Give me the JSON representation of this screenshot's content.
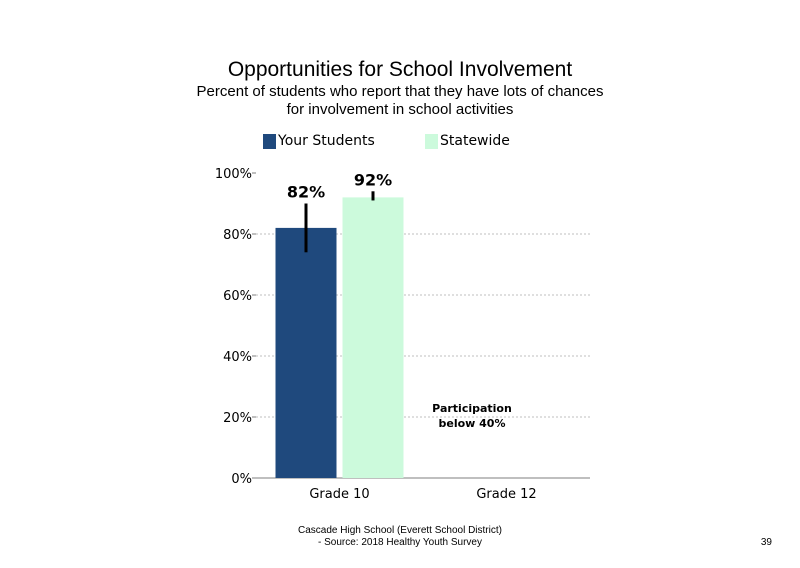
{
  "slide": {
    "title": "Opportunities  for School Involvement",
    "subtitle_line1": "Percent of students  who report that they have lots of chances",
    "subtitle_line2": "for involvement  in school activities",
    "footer_line1": "Cascade High School (Everett School District)",
    "footer_line2": "- Source: 2018 Healthy  Youth Survey",
    "page_number": "39"
  },
  "chart_data": {
    "type": "bar",
    "categories": [
      "Grade 10",
      "Grade 12"
    ],
    "series": [
      {
        "name": "Your Students",
        "color": "#1f497d",
        "values": [
          82,
          null
        ],
        "labels": [
          "82%",
          ""
        ],
        "error_low": [
          74,
          null
        ],
        "error_high": [
          90,
          null
        ]
      },
      {
        "name": "Statewide",
        "color": "#ccfadc",
        "values": [
          92,
          null
        ],
        "labels": [
          "92%",
          ""
        ],
        "error_low": [
          91,
          null
        ],
        "error_high": [
          94,
          null
        ]
      }
    ],
    "yticks": [
      "0%",
      "20%",
      "40%",
      "60%",
      "80%",
      "100%"
    ],
    "ylim": [
      0,
      100
    ],
    "grid": true,
    "legend_position": "top",
    "annotation_line1": "Participation",
    "annotation_line2": "below 40%"
  }
}
